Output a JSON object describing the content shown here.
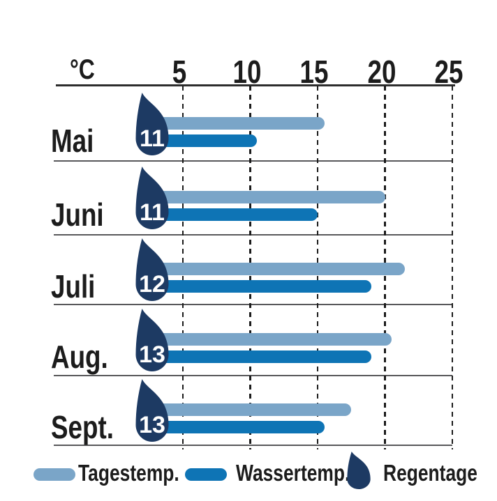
{
  "axis": {
    "unit": "°C"
  },
  "chart_data": {
    "type": "bar",
    "orientation": "horizontal",
    "xlabel": "°C",
    "x_ticks": [
      5,
      10,
      15,
      20,
      25
    ],
    "xlim": [
      0,
      25
    ],
    "grid": "dashed-vertical",
    "legend_position": "bottom",
    "categories": [
      "Mai",
      "Juni",
      "Juli",
      "Aug.",
      "Sept."
    ],
    "series": [
      {
        "name": "Tagestemp.",
        "color": "#7AA5C8",
        "values": [
          15.5,
          20,
          21.5,
          20.5,
          17.5
        ]
      },
      {
        "name": "Wassertemp.",
        "color": "#0E74B5",
        "values": [
          10.5,
          15,
          19,
          19,
          15.5
        ]
      }
    ],
    "rain_days": {
      "name": "Regentage",
      "color": "#1D3A63",
      "values": [
        11,
        11,
        12,
        13,
        13
      ]
    }
  },
  "colors": {
    "day_temp": "#7AA5C8",
    "water_temp": "#0E74B5",
    "rain_drop": "#1D3A63",
    "text": "#1C1C1C"
  }
}
